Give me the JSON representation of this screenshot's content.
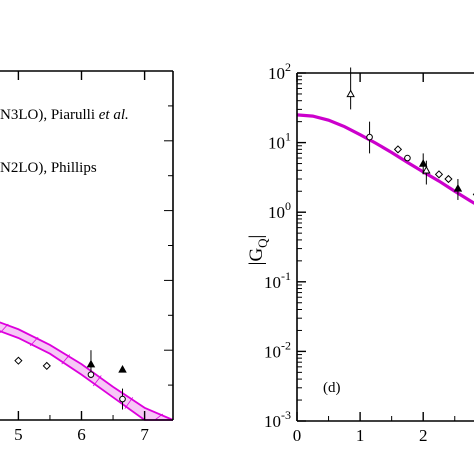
{
  "chart_data": [
    {
      "panel": "left",
      "type": "scatter",
      "xlim_visible": [
        4.55,
        7.45
      ],
      "ylim_visible": [
        0,
        1
      ],
      "x_ticks": [
        5,
        6,
        7
      ],
      "x_tick_labels": [
        "5",
        "6",
        "7"
      ],
      "legend_lines": [
        {
          "prefix": "N3LO), Piarulli ",
          "suffix": "et al."
        },
        {
          "prefix": "N2LO), Phillips",
          "suffix": ""
        }
      ],
      "band": {
        "color": "#dd00dd",
        "x": [
          4.55,
          5.0,
          5.5,
          6.0,
          6.5,
          7.0,
          7.45
        ],
        "upper": [
          0.29,
          0.26,
          0.215,
          0.16,
          0.095,
          0.035,
          0.0
        ],
        "lower": [
          0.265,
          0.235,
          0.19,
          0.13,
          0.065,
          0.0,
          0.0
        ]
      },
      "points": [
        {
          "x": 5.0,
          "y": 0.17,
          "err": 0.0,
          "marker": "open-diamond"
        },
        {
          "x": 5.45,
          "y": 0.155,
          "err": 0.0,
          "marker": "open-diamond"
        },
        {
          "x": 6.15,
          "y": 0.16,
          "err": 0.04,
          "marker": "filled-triangle"
        },
        {
          "x": 6.15,
          "y": 0.13,
          "err": 0.0,
          "marker": "open-circle"
        },
        {
          "x": 6.65,
          "y": 0.145,
          "err": 0.0,
          "marker": "filled-triangle"
        },
        {
          "x": 6.65,
          "y": 0.06,
          "err": 0.03,
          "marker": "open-circle"
        }
      ]
    },
    {
      "panel": "right",
      "type": "scatter",
      "scale_y": "log",
      "ylabel": "|G",
      "ylabel_sub": "Q",
      "ylabel_close": "|",
      "annotation": "(d)",
      "xlim_visible": [
        0,
        2.9
      ],
      "ylim": [
        0.001,
        100
      ],
      "x_ticks": [
        0,
        1,
        2
      ],
      "x_tick_labels": [
        "0",
        "1",
        "2"
      ],
      "y_ticks": [
        {
          "base": "10",
          "exp": "2"
        },
        {
          "base": "10",
          "exp": "1"
        },
        {
          "base": "10",
          "exp": "0"
        },
        {
          "base": "10",
          "exp": "-1"
        },
        {
          "base": "10",
          "exp": "-2"
        },
        {
          "base": "10",
          "exp": "-3"
        }
      ],
      "curve": {
        "color": "#cc00cc",
        "x": [
          0,
          0.25,
          0.5,
          0.75,
          1.0,
          1.25,
          1.5,
          1.75,
          2.0,
          2.25,
          2.5,
          2.75,
          2.9
        ],
        "y": [
          25.0,
          24.0,
          21.0,
          17.0,
          13.0,
          9.8,
          7.2,
          5.2,
          3.8,
          2.8,
          2.0,
          1.45,
          1.2
        ]
      },
      "points": [
        {
          "x": 0.85,
          "y": 50.0,
          "err_low": 30.0,
          "err_high": 120.0,
          "marker": "open-triangle"
        },
        {
          "x": 1.15,
          "y": 12.0,
          "err_low": 7.0,
          "err_high": 20.0,
          "marker": "open-circle"
        },
        {
          "x": 1.6,
          "y": 8.0,
          "err_low": 0.0,
          "err_high": 0.0,
          "marker": "open-diamond"
        },
        {
          "x": 1.75,
          "y": 6.0,
          "err_low": 0.0,
          "err_high": 0.0,
          "marker": "open-circle"
        },
        {
          "x": 2.0,
          "y": 5.0,
          "err_low": 3.5,
          "err_high": 7.0,
          "marker": "filled-triangle"
        },
        {
          "x": 2.05,
          "y": 4.0,
          "err_low": 2.5,
          "err_high": 5.5,
          "marker": "open-triangle"
        },
        {
          "x": 2.25,
          "y": 3.5,
          "err_low": 0.0,
          "err_high": 0.0,
          "marker": "open-diamond"
        },
        {
          "x": 2.4,
          "y": 3.0,
          "err_low": 0.0,
          "err_high": 0.0,
          "marker": "open-diamond"
        },
        {
          "x": 2.55,
          "y": 2.2,
          "err_low": 1.5,
          "err_high": 3.0,
          "marker": "filled-triangle"
        },
        {
          "x": 2.85,
          "y": 1.8,
          "err_low": 0.0,
          "err_high": 0.0,
          "marker": "open-diamond"
        }
      ]
    }
  ]
}
